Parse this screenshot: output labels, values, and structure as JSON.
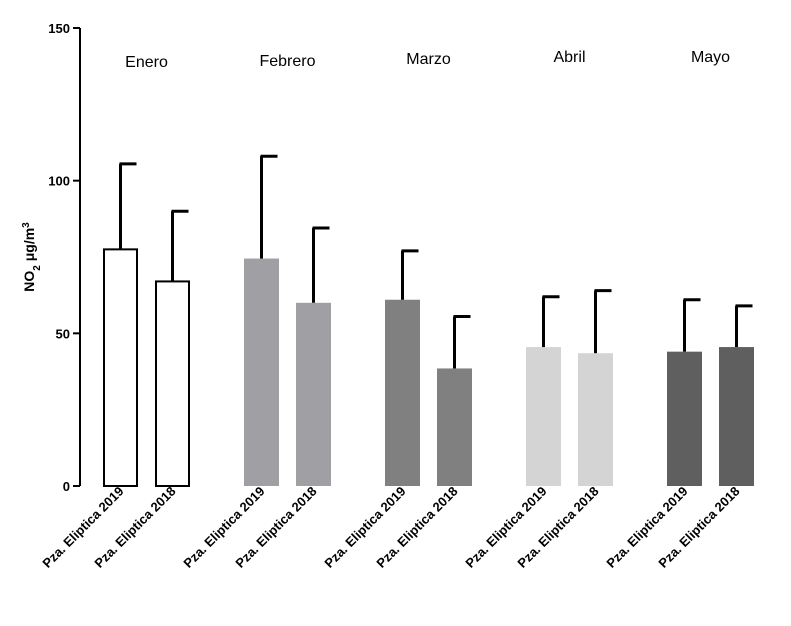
{
  "chart_data": {
    "type": "bar",
    "ylabel": "NO2 μg/m3",
    "ylabel_parts": {
      "pre": "NO",
      "sub": "2",
      "mid": " μg/m",
      "sup": "3"
    },
    "ylim": [
      0,
      150
    ],
    "yticks": [
      0,
      50,
      100,
      150
    ],
    "ytick_labels": [
      "0",
      "50",
      "100",
      "150"
    ],
    "grid": false,
    "groups": [
      {
        "name": "Enero",
        "color": "#ffffff",
        "stroke": "#000000",
        "bars": [
          {
            "label": "Pza. Eliptica 2019",
            "value": 77.5,
            "error": 28
          },
          {
            "label": "Pza. Eliptica 2018",
            "value": 67,
            "error": 23
          }
        ]
      },
      {
        "name": "Febrero",
        "color": "#a0a0a4",
        "bars": [
          {
            "label": "Pza. Eliptica 2019",
            "value": 74.5,
            "error": 33.5
          },
          {
            "label": "Pza. Eliptica 2018",
            "value": 60,
            "error": 24.5
          }
        ]
      },
      {
        "name": "Marzo",
        "color": "#808080",
        "bars": [
          {
            "label": "Pza. Eliptica 2019",
            "value": 61,
            "error": 16
          },
          {
            "label": "Pza. Eliptica 2018",
            "value": 38.5,
            "error": 17
          }
        ]
      },
      {
        "name": "Abril",
        "color": "#d4d4d4",
        "bars": [
          {
            "label": "Pza. Eliptica 2019",
            "value": 45.5,
            "error": 16.5
          },
          {
            "label": "Pza. Eliptica 2018",
            "value": 43.5,
            "error": 20.5
          }
        ]
      },
      {
        "name": "Mayo",
        "color": "#5f5f5f",
        "bars": [
          {
            "label": "Pza. Eliptica 2019",
            "value": 44,
            "error": 17
          },
          {
            "label": "Pza. Eliptica 2018",
            "value": 45.5,
            "error": 13.5
          }
        ]
      }
    ]
  }
}
